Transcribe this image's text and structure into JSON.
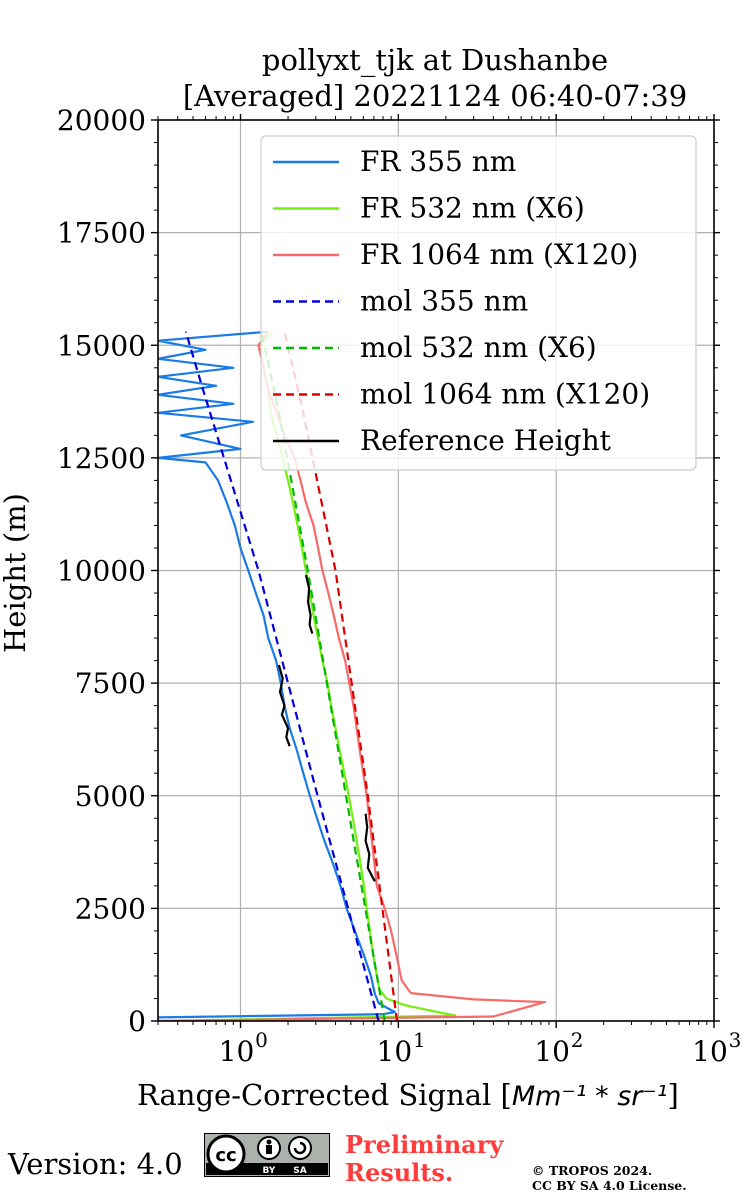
{
  "chart_data": {
    "type": "line",
    "title": "pollyxt_tjk at Dushanbe",
    "subtitle": "[Averaged] 20221124 06:40-07:39",
    "xlabel_prefix": "Range-Corrected Signal [",
    "xlabel_math": "Mm⁻¹ * sr⁻¹",
    "xlabel_suffix": "]",
    "ylabel": "Height (m)",
    "x_scale": "log",
    "xlim": [
      0.3,
      1000
    ],
    "ylim": [
      0,
      20000
    ],
    "xticks": [
      {
        "value": 1,
        "label": "10^0"
      },
      {
        "value": 10,
        "label": "10^1"
      },
      {
        "value": 100,
        "label": "10^2"
      },
      {
        "value": 1000,
        "label": "10^3"
      }
    ],
    "yticks": [
      0,
      2500,
      5000,
      7500,
      10000,
      12500,
      15000,
      17500,
      20000
    ],
    "grid": true,
    "legend_position": "top-right",
    "series": [
      {
        "name": "FR 355 nm",
        "color": "#1a7be6",
        "style": "solid",
        "points": [
          [
            0.3,
            0
          ],
          [
            0.3,
            80
          ],
          [
            8.0,
            150
          ],
          [
            9.5,
            200
          ],
          [
            8.6,
            280
          ],
          [
            7.5,
            400
          ],
          [
            7.1,
            600
          ],
          [
            6.7,
            1000
          ],
          [
            6.0,
            1500
          ],
          [
            5.3,
            2000
          ],
          [
            4.7,
            2500
          ],
          [
            4.3,
            3000
          ],
          [
            3.85,
            3500
          ],
          [
            3.4,
            4000
          ],
          [
            3.05,
            4500
          ],
          [
            2.75,
            5000
          ],
          [
            2.5,
            5500
          ],
          [
            2.28,
            6000
          ],
          [
            2.05,
            6500
          ],
          [
            1.9,
            7000
          ],
          [
            1.8,
            7500
          ],
          [
            1.68,
            8000
          ],
          [
            1.5,
            8500
          ],
          [
            1.4,
            9000
          ],
          [
            1.25,
            9500
          ],
          [
            1.12,
            10000
          ],
          [
            1.0,
            10500
          ],
          [
            0.92,
            11000
          ],
          [
            0.82,
            11500
          ],
          [
            0.72,
            12000
          ],
          [
            0.6,
            12400
          ],
          [
            0.3,
            12500
          ],
          [
            1.0,
            12700
          ],
          [
            0.42,
            13000
          ],
          [
            1.2,
            13300
          ],
          [
            0.3,
            13500
          ],
          [
            0.9,
            13700
          ],
          [
            0.3,
            13900
          ],
          [
            0.7,
            14100
          ],
          [
            0.3,
            14300
          ],
          [
            0.9,
            14500
          ],
          [
            0.3,
            14700
          ],
          [
            0.6,
            14900
          ],
          [
            0.3,
            15100
          ],
          [
            1.5,
            15300
          ]
        ]
      },
      {
        "name": "FR 532 nm (X6)",
        "color": "#77ee11",
        "style": "solid",
        "points": [
          [
            0.3,
            0
          ],
          [
            23,
            120
          ],
          [
            16,
            230
          ],
          [
            11,
            350
          ],
          [
            8.4,
            500
          ],
          [
            7.6,
            700
          ],
          [
            7.3,
            1000
          ],
          [
            6.9,
            1500
          ],
          [
            6.6,
            2000
          ],
          [
            6.3,
            2500
          ],
          [
            6.05,
            3000
          ],
          [
            5.75,
            3500
          ],
          [
            5.45,
            4000
          ],
          [
            5.15,
            4500
          ],
          [
            4.85,
            5000
          ],
          [
            4.55,
            5500
          ],
          [
            4.25,
            6000
          ],
          [
            4.0,
            6500
          ],
          [
            3.75,
            7000
          ],
          [
            3.55,
            7500
          ],
          [
            3.3,
            8000
          ],
          [
            3.1,
            8500
          ],
          [
            2.9,
            9000
          ],
          [
            2.75,
            9500
          ],
          [
            2.6,
            10000
          ],
          [
            2.45,
            10500
          ],
          [
            2.3,
            11000
          ],
          [
            2.15,
            11500
          ],
          [
            2.0,
            12000
          ],
          [
            1.85,
            12500
          ],
          [
            1.7,
            13000
          ],
          [
            1.55,
            13500
          ],
          [
            1.5,
            14000
          ],
          [
            1.4,
            14500
          ],
          [
            1.3,
            15000
          ],
          [
            1.6,
            15300
          ]
        ]
      },
      {
        "name": "FR 1064 nm (X120)",
        "color": "#f86a6a",
        "style": "solid",
        "points": [
          [
            0.3,
            0
          ],
          [
            40,
            100
          ],
          [
            85,
            420
          ],
          [
            30,
            480
          ],
          [
            12,
            620
          ],
          [
            10.5,
            900
          ],
          [
            9.8,
            1400
          ],
          [
            9.0,
            2000
          ],
          [
            8.2,
            2500
          ],
          [
            7.3,
            3000
          ],
          [
            6.8,
            4000
          ],
          [
            6.3,
            5000
          ],
          [
            5.7,
            6000
          ],
          [
            5.2,
            7000
          ],
          [
            4.6,
            8000
          ],
          [
            4.2,
            8500
          ],
          [
            3.9,
            9000
          ],
          [
            3.6,
            9500
          ],
          [
            3.3,
            10000
          ],
          [
            3.1,
            10500
          ],
          [
            2.9,
            11000
          ],
          [
            2.6,
            11500
          ],
          [
            2.4,
            12000
          ],
          [
            2.2,
            12500
          ],
          [
            1.9,
            13000
          ],
          [
            1.7,
            13500
          ],
          [
            1.5,
            14000
          ],
          [
            1.4,
            14500
          ],
          [
            1.3,
            15000
          ],
          [
            1.5,
            15300
          ]
        ]
      },
      {
        "name": "mol 355 nm",
        "color": "#0000dd",
        "style": "dashed",
        "points": [
          [
            7.5,
            0
          ],
          [
            3.08,
            5000
          ],
          [
            1.3,
            10000
          ],
          [
            0.58,
            14000
          ],
          [
            0.45,
            15300
          ]
        ]
      },
      {
        "name": "mol 532 nm (X6)",
        "color": "#00b800",
        "style": "dashed",
        "points": [
          [
            8.2,
            0
          ],
          [
            4.66,
            5000
          ],
          [
            2.67,
            10000
          ],
          [
            1.75,
            13500
          ],
          [
            1.36,
            15300
          ]
        ]
      },
      {
        "name": "mol 1064 nm (X120)",
        "color": "#dd0000",
        "style": "dashed",
        "points": [
          [
            9.8,
            0
          ],
          [
            6.4,
            5000
          ],
          [
            4.0,
            10000
          ],
          [
            2.5,
            13500
          ],
          [
            1.9,
            15300
          ]
        ]
      },
      {
        "name": "Reference Height",
        "color": "#000000",
        "style": "solid",
        "points": [
          [
            1.75,
            7900
          ],
          [
            1.85,
            7600
          ],
          [
            1.78,
            7300
          ],
          [
            1.9,
            7000
          ],
          [
            1.83,
            6800
          ],
          [
            2.0,
            6500
          ],
          [
            1.95,
            6300
          ],
          [
            2.05,
            6100
          ],
          [
            2.6,
            9900
          ],
          [
            2.72,
            9600
          ],
          [
            2.68,
            9300
          ],
          [
            2.78,
            9000
          ],
          [
            2.74,
            8800
          ],
          [
            2.85,
            8600
          ],
          [
            6.2,
            4600
          ],
          [
            6.35,
            4300
          ],
          [
            6.2,
            4000
          ],
          [
            6.55,
            3700
          ],
          [
            6.4,
            3400
          ],
          [
            6.85,
            3200
          ],
          [
            7.1,
            3100
          ]
        ]
      }
    ]
  },
  "footer": {
    "version": "Version: 4.0",
    "license_badge": {
      "left": "cc",
      "right_labels": [
        "BY",
        "SA"
      ]
    },
    "preliminary_line1": "Preliminary",
    "preliminary_line2": "Results.",
    "copyright_line1": "© TROPOS 2024.",
    "copyright_line2": "CC BY SA 4.0 License."
  }
}
